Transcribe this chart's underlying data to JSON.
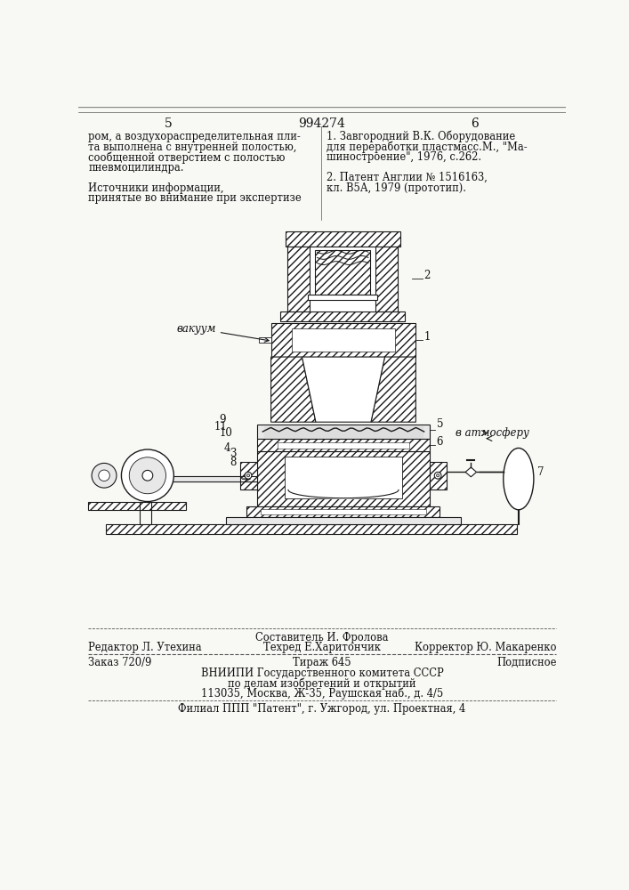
{
  "bg_color": "#f8f8f5",
  "page_number_left": "5",
  "page_number_center": "994274",
  "page_number_right": "6",
  "left_text": [
    "ром, а воздухораспределительная пли-",
    "та выполнена с внутренней полостью,",
    "сообщенной отверстием с полостью",
    "пневмоцилиндра.",
    "",
    "Источники информации,",
    "принятые во внимание при экспертизе"
  ],
  "right_text": [
    "1. Завгородний В.К. Оборудование",
    "для переработки пластмасс.М., \"Ма-",
    "шиностроение\", 1976, с.262.",
    "",
    "2. Патент Англии № 1516163,",
    "кл. В5А, 1979 (прототип)."
  ],
  "footer_line1": "Составитель И. Фролова",
  "footer_line2_left": "Редактор Л. Утехина",
  "footer_line2_mid": "Техред Е.Харитончик",
  "footer_line2_right": "Корректор Ю. Макаренко",
  "footer_line3_left": "Заказ 720/9",
  "footer_line3_mid": "Тираж 645",
  "footer_line3_right": "Подписное",
  "footer_line4": "ВНИИПИ Государственного комитета СССР",
  "footer_line5": "по делам изобретений и открытий",
  "footer_line6": "113035, Москва, Ж-35, Раушская наб., д. 4/5",
  "footer_line7": "Филиал ППП \"Патент\", г. Ужгород, ул. Проектная, 4",
  "label_vakuum": "вакуум",
  "label_atmosfera": "в атмосферу",
  "label_1": "1",
  "label_2": "2",
  "label_3": "3",
  "label_4": "4",
  "label_5": "5",
  "label_6": "6",
  "label_7": "7",
  "label_8": "8",
  "label_9": "9",
  "label_10": "10",
  "label_11": "11"
}
